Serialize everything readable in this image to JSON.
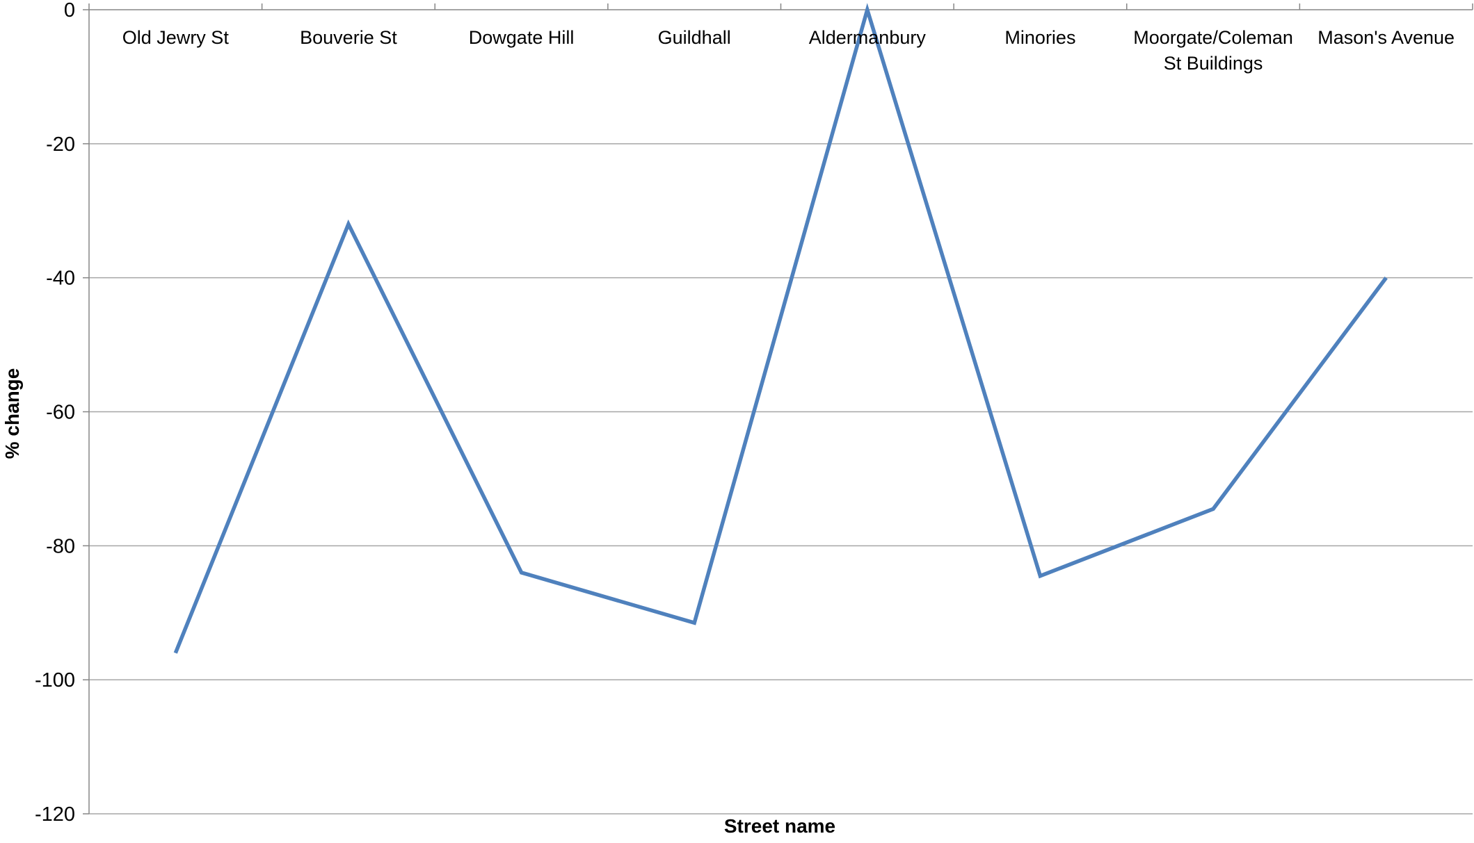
{
  "chart_data": {
    "type": "line",
    "title": "",
    "xlabel": "Street name",
    "ylabel": "% change",
    "ylim": [
      -120,
      0
    ],
    "yticks": [
      0,
      -20,
      -40,
      -60,
      -80,
      -100,
      -120
    ],
    "ytick_labels": [
      "0",
      "-20",
      "-40",
      "-60",
      "-80",
      "-100",
      "-120"
    ],
    "categories": [
      [
        "Old Jewry St"
      ],
      [
        "Bouverie St"
      ],
      [
        "Dowgate Hill"
      ],
      [
        "Guildhall"
      ],
      [
        "Aldermanbury"
      ],
      [
        "Minories"
      ],
      [
        "Moorgate/Coleman",
        "St Buildings"
      ],
      [
        "Mason's Avenue"
      ]
    ],
    "series": [
      {
        "values": [
          -96,
          -32,
          -84,
          -91.5,
          0,
          -84.5,
          -74.5,
          -40
        ]
      }
    ],
    "x_axis_position": "top",
    "grid": "horizontal",
    "legend": "none",
    "colors": {
      "line": "#4F81BD",
      "grid": "#A6A6A6",
      "axis": "#868686"
    }
  }
}
